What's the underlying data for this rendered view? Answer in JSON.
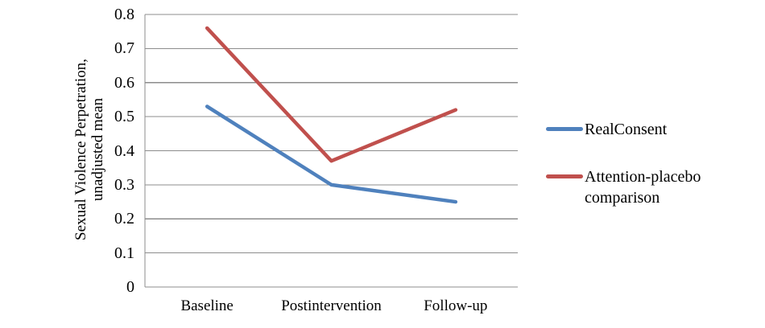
{
  "chart_data": {
    "type": "line",
    "title": "",
    "categories": [
      "Baseline",
      "Postintervention",
      "Follow-up"
    ],
    "series": [
      {
        "name": "RealConsent",
        "color": "#4F81BD",
        "values": [
          0.53,
          0.3,
          0.25
        ]
      },
      {
        "name": "Attention-placebo comparison",
        "color": "#C0504D",
        "values": [
          0.76,
          0.37,
          0.52
        ]
      }
    ],
    "xlabel": "",
    "ylabel": "Sexual Violence Perpetration, unadjusted mean",
    "ylabel_lines": [
      "Sexual Violence Perpetration,",
      "unadjusted mean"
    ],
    "ylim": [
      0,
      0.8
    ],
    "yticks": [
      0,
      0.1,
      0.2,
      0.3,
      0.4,
      0.5,
      0.6,
      0.7,
      0.8
    ],
    "ytick_labels": [
      "0",
      "0.1",
      "0.2",
      "0.3",
      "0.4",
      "0.5",
      "0.6",
      "0.7",
      "0.8"
    ],
    "grid": "horizontal",
    "gridline_color": "#8C8C8C",
    "axis_color": "#8C8C8C",
    "line_width": 4.5,
    "legend_position": "right"
  }
}
